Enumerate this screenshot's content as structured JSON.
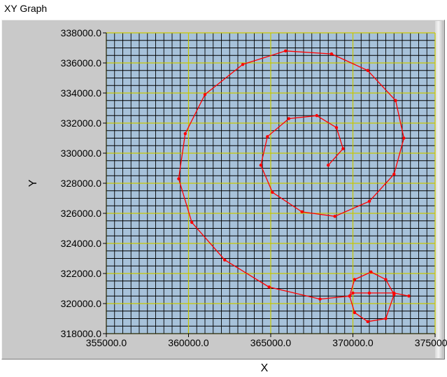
{
  "graph": {
    "label": "XY Graph"
  },
  "colors": {
    "plot_background": "#a7c2da",
    "minor_grid": "#000000",
    "major_grid": "#c8c800",
    "trace": "#ff0000"
  },
  "chart_data": {
    "type": "line",
    "title": "",
    "xlabel": "X",
    "ylabel": "Y",
    "xlim": [
      355000,
      375000
    ],
    "ylim": [
      318000,
      338000
    ],
    "grid": true,
    "x_ticks": [
      "355000.0",
      "360000.0",
      "365000.0",
      "370000.0",
      "375000.0"
    ],
    "y_ticks": [
      "318000.0",
      "320000.0",
      "322000.0",
      "324000.0",
      "326000.0",
      "328000.0",
      "330000.0",
      "332000.0",
      "334000.0",
      "336000.0",
      "338000.0"
    ],
    "series": [
      {
        "x": [
          368500,
          369400,
          369000,
          367800,
          366100,
          364800,
          364400,
          365100,
          366900,
          368900,
          371000,
          372500,
          373100,
          372600,
          370900,
          368700,
          365900,
          363300,
          361000,
          359800,
          359400,
          360200,
          362200,
          364900,
          368000,
          369800,
          370100,
          371100,
          372000,
          372500,
          372000,
          370900,
          370100,
          369800,
          370000,
          371000,
          372500,
          373400
        ],
        "y": [
          329200,
          330300,
          331700,
          332500,
          332300,
          331100,
          329200,
          327400,
          326100,
          325800,
          326800,
          328600,
          331000,
          333500,
          335500,
          336600,
          336800,
          335900,
          333900,
          331300,
          328300,
          325400,
          322900,
          321100,
          320300,
          320500,
          321600,
          322100,
          321600,
          320600,
          319000,
          318800,
          319400,
          320500,
          320700,
          320700,
          320700,
          320500
        ]
      }
    ]
  }
}
